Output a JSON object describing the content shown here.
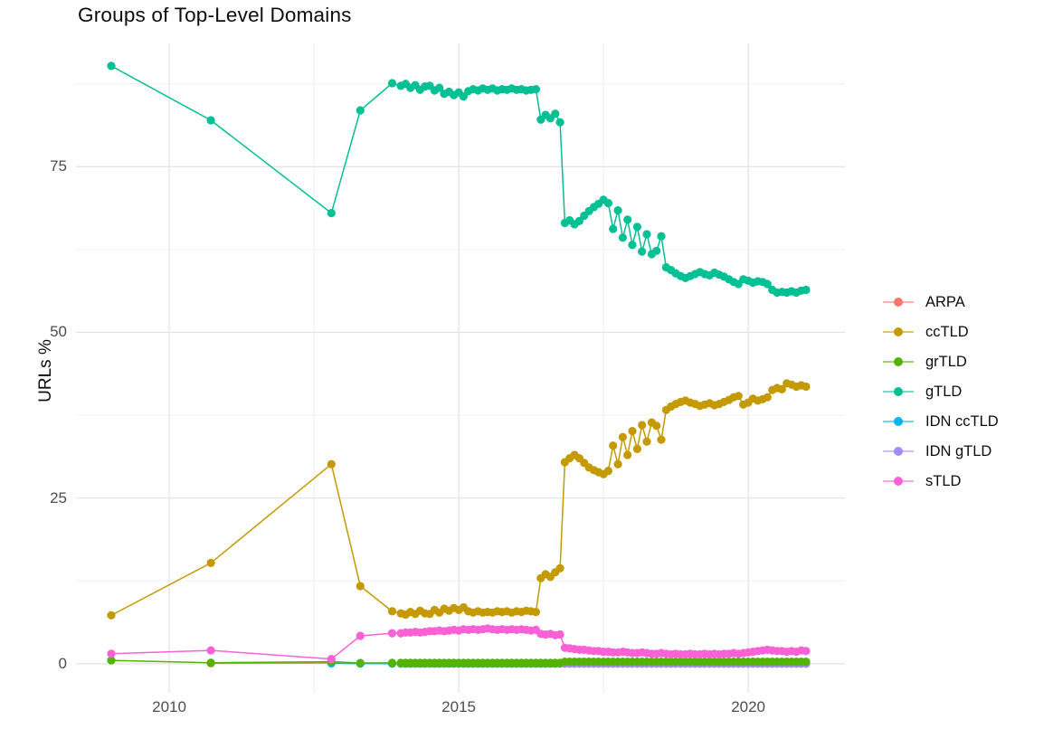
{
  "chart_data": {
    "type": "line",
    "title": "Groups of Top-Level Domains",
    "xlabel": "",
    "ylabel": "URLs %",
    "grid": "on",
    "legend_position": "right",
    "x_axis": {
      "tick_labels": [
        "2010",
        "2015",
        "2020"
      ],
      "tick_values": [
        2010,
        2015,
        2020
      ],
      "minor": [
        2012.5,
        2017.5
      ],
      "range": [
        2008.39,
        2021.67
      ]
    },
    "y_axis": {
      "tick_labels": [
        "0",
        "25",
        "50",
        "75"
      ],
      "tick_values": [
        0,
        25,
        50,
        75
      ],
      "minor": [
        12.5,
        37.5,
        62.5,
        87.5
      ],
      "range": [
        -4.4,
        93.6
      ]
    },
    "point_order": [
      "ARPA",
      "IDN ccTLD",
      "IDN gTLD",
      "grTLD",
      "gTLD",
      "ccTLD",
      "sTLD"
    ],
    "series": [
      {
        "name": "ARPA",
        "color": "#F8766D",
        "segments": [
          {
            "pts": [
              [
                2010.72,
                0.05
              ],
              [
                2012.8,
                0.1
              ],
              [
                2013.3,
                0.03
              ],
              [
                2013.85,
                0.02
              ]
            ]
          },
          {
            "x0": 2014.0,
            "dx": 0.0833,
            "n": 34,
            "const": 0.02
          }
        ]
      },
      {
        "name": "ccTLD",
        "color": "#C49A00",
        "segments": [
          {
            "pts": [
              [
                2009.0,
                7.3
              ],
              [
                2010.72,
                15.2
              ],
              [
                2012.8,
                30.1
              ],
              [
                2013.3,
                11.7
              ],
              [
                2013.85,
                7.9
              ]
            ]
          },
          {
            "x0": 2014.0,
            "dx": 0.0833,
            "v": [
              7.6,
              7.4,
              7.8,
              7.5,
              8.0,
              7.6,
              7.5,
              8.1,
              7.7,
              8.3,
              8.0,
              8.4,
              8.1,
              8.5,
              7.9,
              7.7,
              7.9,
              7.7,
              7.8,
              7.7,
              7.9,
              7.8,
              7.9,
              7.7,
              7.9,
              7.8,
              8.0,
              7.9,
              7.8
            ]
          },
          {
            "x0": 2016.417,
            "dx": 0.0833,
            "v": [
              12.9,
              13.5,
              13.1,
              13.8,
              14.4
            ]
          },
          {
            "x0": 2016.833,
            "dx": 0.0833,
            "v": [
              30.4,
              31.0,
              31.5,
              31.0,
              30.3,
              29.6,
              29.2,
              28.9,
              28.6,
              29.1,
              32.9,
              30.1,
              34.2,
              31.5,
              35.1,
              32.4,
              36.0,
              33.5,
              36.4,
              35.9,
              33.8,
              38.3,
              38.8,
              39.2,
              39.5,
              39.7,
              39.4,
              39.2,
              38.9,
              39.1,
              39.3,
              39.0,
              39.2,
              39.5,
              39.8,
              40.2,
              40.4,
              39.1,
              39.4,
              40.0,
              39.7,
              39.9,
              40.2,
              41.3,
              41.6,
              41.4,
              42.3,
              42.1,
              41.8,
              42.0,
              41.8
            ]
          }
        ]
      },
      {
        "name": "grTLD",
        "color": "#53B400",
        "segments": [
          {
            "pts": [
              [
                2009.0,
                0.5
              ],
              [
                2010.72,
                0.15
              ],
              [
                2012.8,
                0.3
              ],
              [
                2013.3,
                0.1
              ],
              [
                2013.85,
                0.12
              ]
            ]
          },
          {
            "x0": 2014.0,
            "dx": 0.0833,
            "n": 34,
            "const": 0.12
          },
          {
            "x0": 2016.833,
            "dx": 0.0833,
            "n": 51,
            "const": 0.3
          }
        ]
      },
      {
        "name": "gTLD",
        "color": "#00C094",
        "segments": [
          {
            "pts": [
              [
                2009.0,
                90.2
              ],
              [
                2010.72,
                82.0
              ],
              [
                2012.8,
                68.0
              ],
              [
                2013.3,
                83.5
              ],
              [
                2013.85,
                87.6
              ]
            ]
          },
          {
            "x0": 2014.0,
            "dx": 0.0833,
            "v": [
              87.2,
              87.5,
              86.9,
              87.3,
              86.6,
              87.1,
              87.2,
              86.5,
              86.9,
              86.0,
              86.3,
              85.8,
              86.2,
              85.6,
              86.4,
              86.7,
              86.5,
              86.8,
              86.6,
              86.8,
              86.5,
              86.7,
              86.6,
              86.8,
              86.6,
              86.7,
              86.5,
              86.6,
              86.7
            ]
          },
          {
            "x0": 2016.417,
            "dx": 0.0833,
            "v": [
              82.1,
              82.8,
              82.3,
              83.0,
              81.7
            ]
          },
          {
            "x0": 2016.833,
            "dx": 0.0833,
            "v": [
              66.5,
              66.9,
              66.3,
              66.8,
              67.6,
              68.3,
              68.9,
              69.4,
              70.0,
              69.5,
              65.6,
              68.4,
              64.3,
              67.0,
              63.2,
              65.9,
              62.2,
              64.8,
              61.8,
              62.3,
              64.5,
              59.8,
              59.4,
              58.9,
              58.5,
              58.2,
              58.5,
              58.8,
              59.1,
              58.8,
              58.6,
              59.0,
              58.7,
              58.4,
              58.0,
              57.6,
              57.3,
              58.0,
              57.8,
              57.5,
              57.7,
              57.6,
              57.3,
              56.4,
              56.0,
              56.1,
              56.0,
              56.2,
              56.0,
              56.3,
              56.4
            ]
          }
        ]
      },
      {
        "name": "IDN ccTLD",
        "color": "#00B6EB",
        "segments": [
          {
            "pts": [
              [
                2012.8,
                0.05
              ],
              [
                2013.3,
                0.02
              ],
              [
                2013.85,
                0.02
              ]
            ]
          },
          {
            "x0": 2014.0,
            "dx": 0.0833,
            "n": 85,
            "const": 0.02
          }
        ]
      },
      {
        "name": "IDN gTLD",
        "color": "#A58AFF",
        "segments": [
          {
            "x0": 2016.833,
            "dx": 0.0833,
            "n": 51,
            "const": 0.0
          }
        ]
      },
      {
        "name": "sTLD",
        "color": "#FB61D7",
        "segments": [
          {
            "pts": [
              [
                2009.0,
                1.5
              ],
              [
                2010.72,
                2.0
              ],
              [
                2012.8,
                0.7
              ],
              [
                2013.3,
                4.2
              ],
              [
                2013.85,
                4.6
              ]
            ]
          },
          {
            "x0": 2014.0,
            "dx": 0.0833,
            "v": [
              4.6,
              4.7,
              4.7,
              4.8,
              4.7,
              4.8,
              4.9,
              4.9,
              5.0,
              4.9,
              5.0,
              5.1,
              5.0,
              5.2,
              5.1,
              5.2,
              5.1,
              5.2,
              5.3,
              5.2,
              5.1,
              5.2,
              5.1,
              5.2,
              5.1,
              5.2,
              5.1,
              5.0,
              5.1
            ]
          },
          {
            "x0": 2016.417,
            "dx": 0.0833,
            "v": [
              4.5,
              4.4,
              4.5,
              4.3,
              4.4
            ]
          },
          {
            "x0": 2016.833,
            "dx": 0.0833,
            "v": [
              2.4,
              2.3,
              2.2,
              2.1,
              2.1,
              2.0,
              1.9,
              1.9,
              1.8,
              1.8,
              1.7,
              1.7,
              1.8,
              1.7,
              1.6,
              1.6,
              1.7,
              1.6,
              1.5,
              1.5,
              1.6,
              1.5,
              1.4,
              1.5,
              1.4,
              1.4,
              1.5,
              1.4,
              1.4,
              1.5,
              1.4,
              1.5,
              1.4,
              1.5,
              1.5,
              1.6,
              1.5,
              1.6,
              1.7,
              1.8,
              1.9,
              2.0,
              2.1,
              2.0,
              1.9,
              1.9,
              1.8,
              1.9,
              1.8,
              2.0,
              1.9
            ]
          }
        ]
      }
    ]
  }
}
